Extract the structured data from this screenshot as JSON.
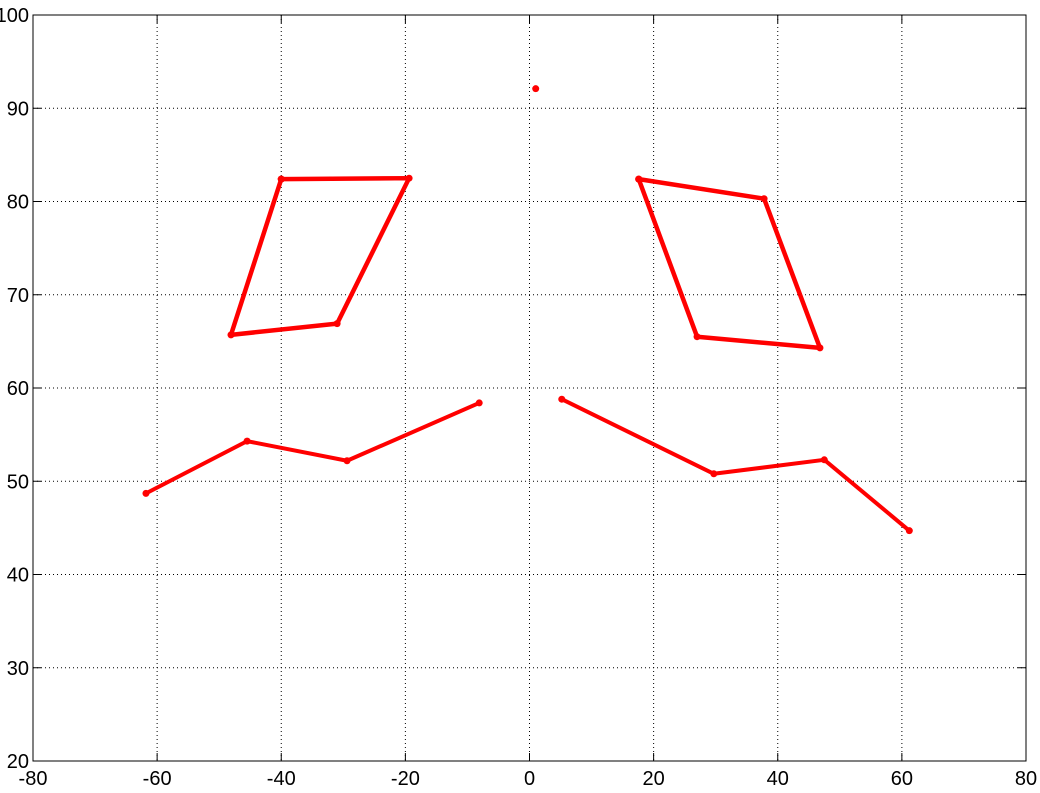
{
  "chart_data": {
    "type": "line",
    "grid": true,
    "grid_style": "dotted",
    "xlim": [
      -80,
      80
    ],
    "xticks": [
      -80,
      -60,
      -40,
      -20,
      0,
      20,
      40,
      60,
      80
    ],
    "ylim": [
      20,
      100
    ],
    "yticks": [
      20,
      30,
      40,
      50,
      60,
      70,
      80,
      90,
      100
    ],
    "series": [
      {
        "color": "#ff0000",
        "line_width": 4.5,
        "x": [
          -40.0,
          -19.4,
          -31.0,
          -48.1,
          -40.0,
          null,
          17.6,
          37.8,
          46.8,
          27.0,
          17.6
        ],
        "values": [
          82.4,
          82.5,
          66.9,
          65.7,
          82.4,
          null,
          82.4,
          80.3,
          64.3,
          65.5,
          82.4
        ]
      },
      {
        "color": "#ff0000",
        "line_width": 4,
        "x": [
          -61.8,
          -45.5,
          -29.4,
          -8.1,
          null,
          5.2,
          29.7,
          47.5,
          61.2
        ],
        "values": [
          48.7,
          54.3,
          52.2,
          58.4,
          null,
          58.8,
          50.8,
          52.3,
          44.7
        ]
      },
      {
        "color": "#ff0000",
        "line_width": 4,
        "x": [
          1.0
        ],
        "values": [
          92.1
        ]
      }
    ]
  }
}
